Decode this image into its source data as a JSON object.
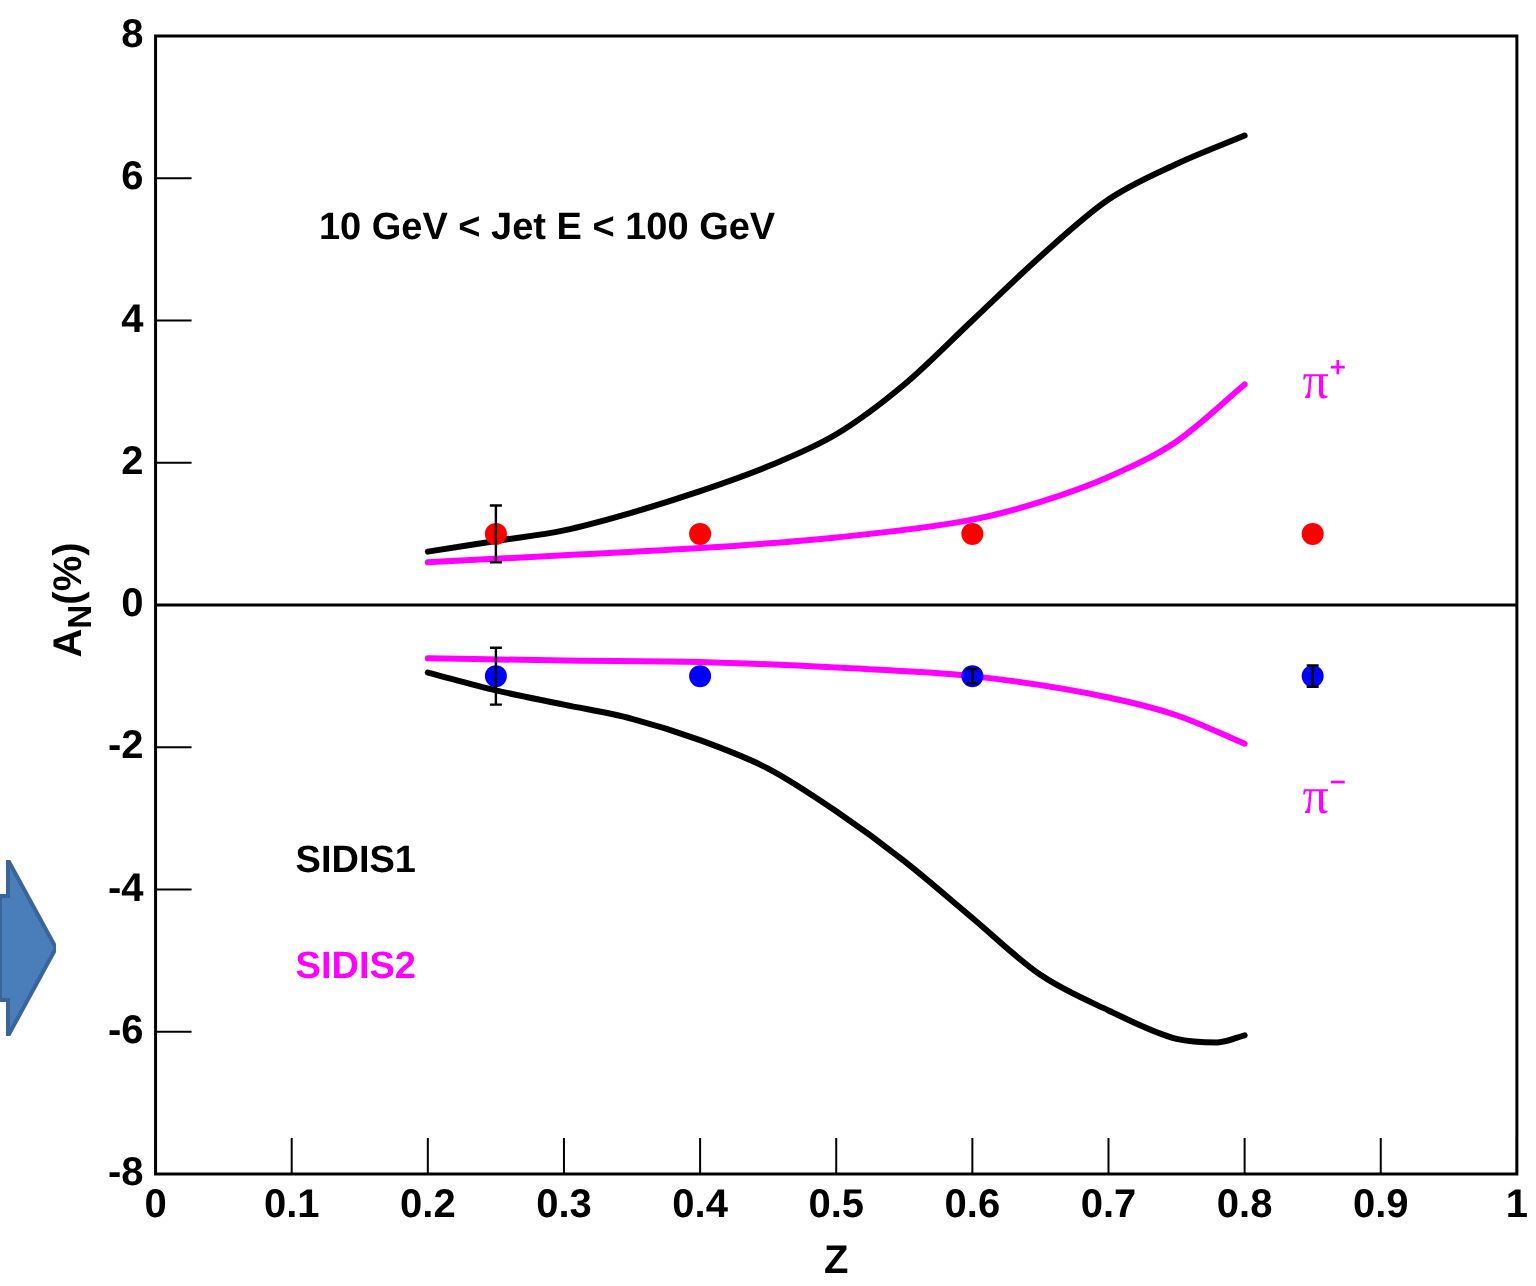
{
  "chart_data": {
    "type": "line",
    "xlabel": "Z",
    "ylabel": "A$_{N}$(%)",
    "xlim": [
      0,
      1
    ],
    "xticks": [
      0,
      0.1,
      0.2,
      0.3,
      0.4,
      0.5,
      0.6,
      0.7,
      0.8,
      0.9,
      1
    ],
    "ylim": [
      -8,
      8
    ],
    "yticks": [
      -8,
      -6,
      -4,
      -2,
      0,
      2,
      4,
      6,
      8
    ],
    "grid": false,
    "legend": "left",
    "marker": "none",
    "line_style": "solid",
    "ref_lines": [
      {
        "axis": "y",
        "value": 0,
        "color": "#000000"
      }
    ],
    "annotations": [
      "10 GeV < Jet E < 100 GeV",
      "π⁺",
      "π⁻"
    ],
    "series": [
      {
        "name": "SIDIS1",
        "color": "#000000",
        "x": [
          0.2,
          0.25,
          0.3,
          0.35,
          0.4,
          0.45,
          0.5,
          0.55,
          0.6,
          0.65,
          0.7,
          0.75,
          0.8
        ],
        "values": [
          0.75,
          0.9,
          1.05,
          1.3,
          1.6,
          1.95,
          2.4,
          3.1,
          4.0,
          4.9,
          5.7,
          6.2,
          6.6
        ]
      },
      {
        "name": "SIDIS2",
        "color": "#ff00ff",
        "x": [
          0.2,
          0.3,
          0.4,
          0.5,
          0.6,
          0.65,
          0.7,
          0.75,
          0.8
        ],
        "values": [
          0.6,
          0.7,
          0.8,
          0.95,
          1.2,
          1.45,
          1.8,
          2.3,
          3.1
        ]
      },
      {
        "color": "#000000",
        "x": [
          0.2,
          0.25,
          0.3,
          0.35,
          0.4,
          0.45,
          0.5,
          0.55,
          0.6,
          0.65,
          0.7,
          0.75,
          0.78,
          0.8
        ],
        "values": [
          -0.95,
          -1.2,
          -1.4,
          -1.6,
          -1.9,
          -2.3,
          -2.9,
          -3.6,
          -4.4,
          -5.2,
          -5.7,
          -6.1,
          -6.15,
          -6.05
        ]
      },
      {
        "color": "#ff00ff",
        "x": [
          0.2,
          0.3,
          0.4,
          0.5,
          0.6,
          0.7,
          0.75,
          0.8
        ],
        "values": [
          -0.75,
          -0.78,
          -0.8,
          -0.88,
          -1.0,
          -1.3,
          -1.55,
          -1.95
        ]
      },
      {
        "type": "scatter",
        "marker": "circle",
        "color": "#ff0000",
        "x": [
          0.25,
          0.4,
          0.6,
          0.85
        ],
        "values": [
          1,
          1,
          1,
          1
        ],
        "errors": [
          0.4,
          null,
          null,
          null
        ]
      },
      {
        "type": "scatter",
        "marker": "circle",
        "color": "#0000ff",
        "x": [
          0.25,
          0.4,
          0.6,
          0.85
        ],
        "values": [
          -1,
          -1,
          -1,
          -1
        ],
        "errors": [
          0.4,
          null,
          0.1,
          0.15
        ]
      }
    ]
  }
}
